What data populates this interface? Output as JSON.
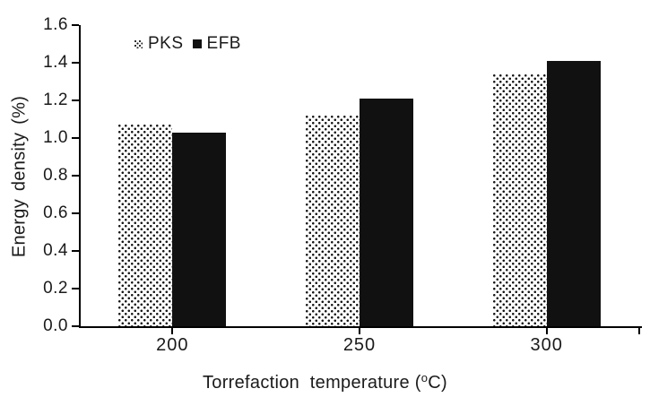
{
  "chart_data": {
    "type": "bar",
    "categories": [
      "200",
      "250",
      "300"
    ],
    "series": [
      {
        "name": "PKS",
        "pattern": "dotted",
        "color": "#111111",
        "values": [
          1.07,
          1.12,
          1.34
        ]
      },
      {
        "name": "EFB",
        "pattern": "solid",
        "color": "#111111",
        "values": [
          1.03,
          1.21,
          1.41
        ]
      }
    ],
    "ylabel": "Energy density (%)",
    "xlabel": {
      "prefix": "Torrefaction  temperature (",
      "degree": "o",
      "suffix": "C)"
    },
    "ylim": [
      0,
      1.6
    ],
    "ytick_step": 0.2,
    "yticks": [
      "0.0",
      "0.2",
      "0.4",
      "0.6",
      "0.8",
      "1.0",
      "1.2",
      "1.4",
      "1.6"
    ],
    "grid": false,
    "legend_position": "top-inside-left",
    "colors": {
      "solid_bar": "#111111",
      "axis": "#000000",
      "text": "#1a1a1a",
      "background": "#ffffff"
    }
  }
}
